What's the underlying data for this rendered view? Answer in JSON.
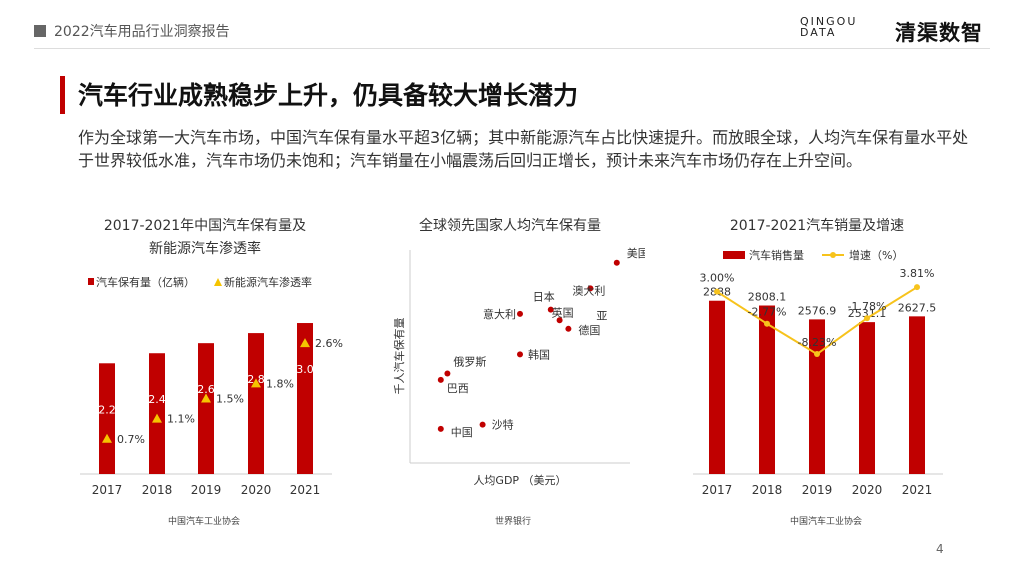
{
  "header": {
    "report_title": "2022汽车用品行业洞察报告",
    "logo_latin_top": "QINGOU",
    "logo_latin_bottom": "DATA",
    "logo_cn": "清渠数智"
  },
  "main": {
    "title": "汽车行业成熟稳步上升，仍具备较大增长潜力",
    "description": "作为全球第一大汽车市场，中国汽车保有量水平超3亿辆；其中新能源汽车占比快速提升。而放眼全球，人均汽车保有量水平处于世界较低水准，汽车市场仍未饱和；汽车销量在小幅震荡后回归正增长，预计未来汽车市场仍存在上升空间。"
  },
  "colors": {
    "accent_red": "#c00000",
    "accent_yellow": "#f5c400",
    "line_yellow": "#f7c31c"
  },
  "sources": [
    "中国汽车工业协会",
    "世界银行",
    "中国汽车工业协会"
  ],
  "page_number": "4",
  "chart_data": [
    {
      "type": "bar",
      "title": "2017-2021年中国汽车保有量及新能源汽车渗透率",
      "title_lines": [
        "2017-2021年中国汽车保有量及",
        "新能源汽车渗透率"
      ],
      "categories": [
        "2017",
        "2018",
        "2019",
        "2020",
        "2021"
      ],
      "series": [
        {
          "name": "汽车保有量（亿辆）",
          "values": [
            2.2,
            2.4,
            2.6,
            2.8,
            3.0
          ],
          "labels": [
            "2.2",
            "2.4",
            "2.6",
            "2.8",
            "3.0"
          ]
        },
        {
          "name": "新能源汽车渗透率",
          "values": [
            0.7,
            1.1,
            1.5,
            1.8,
            2.6
          ],
          "labels": [
            "0.7%",
            "1.1%",
            "1.5%",
            "1.8%",
            "2.6%"
          ]
        }
      ],
      "legend": "top-left",
      "ylim": [
        0,
        3.1
      ],
      "grid": false
    },
    {
      "type": "scatter",
      "title": "全球领先国家人均汽车保有量",
      "xlabel": "人均GDP （美元）",
      "ylabel": "千人汽车保有量",
      "points": [
        {
          "label": "美国",
          "x": 9.4,
          "y": 9.4
        },
        {
          "label": "澳大利亚",
          "x": 8.2,
          "y": 8.2
        },
        {
          "label": "日本",
          "x": 6.4,
          "y": 7.2
        },
        {
          "label": "意大利",
          "x": 5.0,
          "y": 7.0
        },
        {
          "label": "英国",
          "x": 6.8,
          "y": 6.7
        },
        {
          "label": "德国",
          "x": 7.2,
          "y": 6.3
        },
        {
          "label": "韩国",
          "x": 5.0,
          "y": 5.1
        },
        {
          "label": "俄罗斯",
          "x": 1.7,
          "y": 4.2
        },
        {
          "label": "巴西",
          "x": 1.4,
          "y": 3.9
        },
        {
          "label": "中国",
          "x": 1.4,
          "y": 1.6
        },
        {
          "label": "沙特",
          "x": 3.3,
          "y": 1.8
        }
      ],
      "xlim": [
        0,
        10
      ],
      "ylim": [
        0,
        10
      ],
      "grid": false
    },
    {
      "type": "bar",
      "title": "2017-2021汽车销量及增速",
      "categories": [
        "2017",
        "2018",
        "2019",
        "2020",
        "2021"
      ],
      "series": [
        {
          "name": "汽车销售量",
          "values": [
            2888,
            2808.1,
            2576.9,
            2531.1,
            2627.5
          ],
          "labels": [
            "2888",
            "2808.1",
            "2576.9",
            "2531.1",
            "2627.5"
          ]
        },
        {
          "name": "增速（%）",
          "values": [
            3.0,
            -2.77,
            -8.23,
            -1.78,
            3.81
          ],
          "labels": [
            "3.00%",
            "-2.77%",
            "-8.23%",
            "-1.78%",
            "3.81%"
          ]
        }
      ],
      "legend": "top-center",
      "ylim_bar": [
        0,
        3400
      ],
      "ylim_line": [
        -12,
        6
      ],
      "grid": false
    }
  ]
}
